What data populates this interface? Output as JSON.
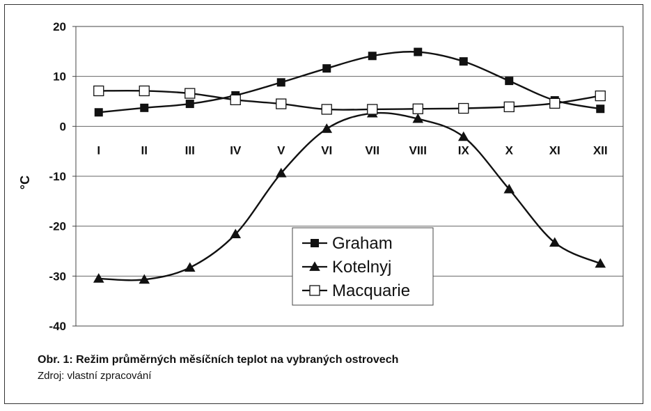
{
  "chart_data": {
    "type": "line",
    "categories": [
      "I",
      "II",
      "III",
      "IV",
      "V",
      "VI",
      "VII",
      "VIII",
      "IX",
      "X",
      "XI",
      "XII"
    ],
    "ylabel": "°C",
    "ylim": [
      -40,
      20
    ],
    "yticks": [
      20,
      10,
      0,
      -10,
      -20,
      -30,
      -40
    ],
    "grid": true,
    "legend_position": "center-bottom",
    "series": [
      {
        "name": "Graham",
        "marker": "filled-square",
        "values": [
          2.8,
          3.7,
          4.5,
          6.2,
          8.8,
          11.6,
          14.1,
          14.9,
          13.0,
          9.1,
          5.2,
          3.5
        ]
      },
      {
        "name": "Kotelnyj",
        "marker": "filled-triangle",
        "values": [
          -30.5,
          -30.7,
          -28.3,
          -21.6,
          -9.4,
          -0.5,
          2.6,
          1.5,
          -2.1,
          -12.6,
          -23.3,
          -27.5
        ]
      },
      {
        "name": "Macquarie",
        "marker": "open-square",
        "values": [
          7.1,
          7.1,
          6.6,
          5.3,
          4.5,
          3.4,
          3.4,
          3.5,
          3.6,
          3.9,
          4.6,
          6.1
        ]
      }
    ]
  },
  "caption": {
    "title": "Obr. 1: Režim průměrných měsíčních teplot na vybraných ostrovech",
    "source": "Zdroj: vlastní zpracování"
  }
}
